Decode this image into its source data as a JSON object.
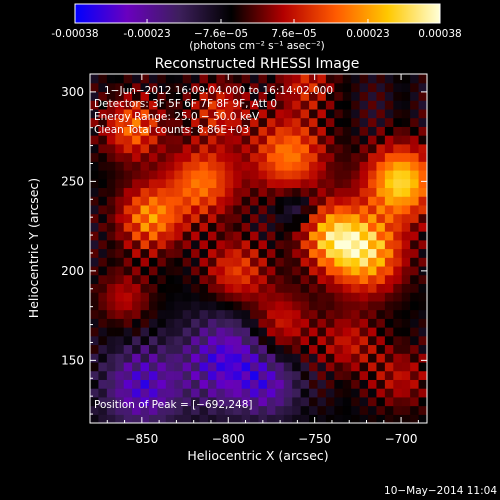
{
  "colorbar": {
    "tick_labels": [
      "-0.00038",
      "-0.00023",
      "−7.6e−05",
      "7.6e−05",
      "0.00023",
      "0.00038"
    ],
    "tick_values": [
      -0.00038,
      -0.00023,
      -7.6e-05,
      7.6e-05,
      0.00023,
      0.00038
    ],
    "range": [
      -0.00038,
      0.00038
    ],
    "unit_label": "(photons cm⁻² s⁻¹ asec⁻²)",
    "colors": [
      "#0000ff",
      "#6a00bf",
      "#3d1f5c",
      "#000000",
      "#b30000",
      "#ff5a00",
      "#ffc800",
      "#ffffd8"
    ]
  },
  "chart_data": {
    "type": "heatmap",
    "title": "Reconstructed RHESSI Image",
    "xlabel": "Heliocentric X (arcsec)",
    "ylabel": "Heliocentric Y (arcsec)",
    "xlim": [
      -880,
      -685
    ],
    "ylim": [
      115,
      310
    ],
    "xticks": [
      -850,
      -800,
      -750,
      -700
    ],
    "yticks": [
      150,
      200,
      250,
      300
    ],
    "xtick_labels": [
      "−850",
      "−800",
      "−750",
      "−700"
    ],
    "ytick_labels": [
      "150",
      "200",
      "250",
      "300"
    ],
    "annotations": [
      "1−Jun−2012 16:09:04.000 to 16:14:02.000",
      "Detectors: 3F 5F 6F 7F 8F 9F, Att 0",
      "Energy Range: 25.0 − 50.0 keV",
      "Clean     Total counts: 8.86E+03"
    ],
    "peak_label": "Position of Peak = [−692,248]",
    "peak": {
      "x": -692,
      "y": 248
    },
    "date_stamp": "10−May−2014 11:04",
    "hotspots": [
      {
        "x": -700,
        "y": 250,
        "amp": 0.00036,
        "sigma": 14
      },
      {
        "x": -720,
        "y": 210,
        "amp": 0.00032,
        "sigma": 15
      },
      {
        "x": -740,
        "y": 220,
        "amp": 0.00028,
        "sigma": 13
      },
      {
        "x": -765,
        "y": 265,
        "amp": 0.00025,
        "sigma": 15
      },
      {
        "x": -815,
        "y": 250,
        "amp": 0.00024,
        "sigma": 14
      },
      {
        "x": -845,
        "y": 230,
        "amp": 0.00026,
        "sigma": 13
      },
      {
        "x": -855,
        "y": 280,
        "amp": 0.00022,
        "sigma": 12
      },
      {
        "x": -795,
        "y": 200,
        "amp": 0.00018,
        "sigma": 13
      },
      {
        "x": -770,
        "y": 170,
        "amp": 0.00016,
        "sigma": 13
      },
      {
        "x": -730,
        "y": 160,
        "amp": 0.00013,
        "sigma": 12
      },
      {
        "x": -860,
        "y": 185,
        "amp": 0.00012,
        "sigma": 11
      },
      {
        "x": -700,
        "y": 140,
        "amp": 0.00012,
        "sigma": 12
      },
      {
        "x": -805,
        "y": 290,
        "amp": 0.00015,
        "sigma": 12
      },
      {
        "x": -755,
        "y": 305,
        "amp": 0.00014,
        "sigma": 11
      },
      {
        "x": -800,
        "y": 150,
        "amp": -0.00025,
        "sigma": 18
      },
      {
        "x": -850,
        "y": 135,
        "amp": -0.00022,
        "sigma": 16
      },
      {
        "x": -760,
        "y": 235,
        "amp": -0.00012,
        "sigma": 8
      },
      {
        "x": -775,
        "y": 135,
        "amp": -0.00014,
        "sigma": 12
      }
    ]
  }
}
